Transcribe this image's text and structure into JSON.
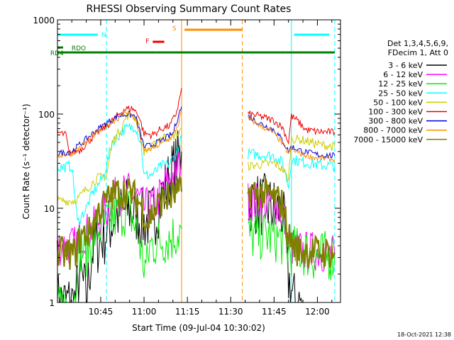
{
  "chart_data": {
    "type": "line",
    "title": "RHESSI Observing Summary Count Rates",
    "xlabel": "Start Time (09-Jul-04 10:30:02)",
    "ylabel": "Count Rate (s⁻¹ detector⁻¹)",
    "y_scale": "log",
    "ylim": [
      1,
      1000
    ],
    "xlim": [
      "10:30:02",
      "12:08"
    ],
    "x_ticks": [
      "10:45",
      "11:00",
      "11:15",
      "11:30",
      "11:45",
      "12:00"
    ],
    "y_ticks": [
      "1",
      "10",
      "100",
      "1000"
    ],
    "grid": false,
    "legend_position": "right",
    "legend_header": [
      "Det 1,3,4,5,6,9,",
      "FDecim 1, Att 0"
    ],
    "timestamp": "18-Oct-2021 12:38",
    "colors": {
      "black": "#000000",
      "magenta": "#ff00ff",
      "green": "#00ee00",
      "cyan": "#00ffff",
      "yellow": "#cccc00",
      "red": "#ee0000",
      "blue": "#0000dd",
      "orange": "#ff8c00",
      "olive": "#808000",
      "darkgreen": "#008000",
      "lightcyan": "#33ffff"
    },
    "flag_bars": [
      {
        "label": "N",
        "color": "#00ffff",
        "segments": [
          [
            "10:30",
            "10:44"
          ],
          [
            "11:52",
            "12:06"
          ]
        ]
      },
      {
        "label": "S",
        "color": "#ff8c00",
        "segments": [
          [
            "11:14",
            "11:34"
          ]
        ]
      },
      {
        "label": "F",
        "color": "#ee0000",
        "segments": [
          [
            "11:03",
            "11:07"
          ]
        ]
      },
      {
        "label": "RDO",
        "color": "#008000",
        "segments": [
          [
            "10:30",
            "10:32"
          ]
        ]
      },
      {
        "label": "RD4",
        "color": "#008000",
        "segments": [
          [
            "10:30",
            "11:04"
          ],
          [
            "11:04",
            "11:34"
          ],
          [
            "11:34",
            "11:49"
          ],
          [
            "11:49",
            "12:06"
          ]
        ]
      }
    ],
    "vertical_lines": [
      {
        "time": "10:47",
        "color": "#00ffff",
        "style": "dashed"
      },
      {
        "time": "11:13",
        "color": "#ff8c00",
        "style": "solid"
      },
      {
        "time": "11:34",
        "color": "#ff8c00",
        "style": "dashed"
      },
      {
        "time": "11:51",
        "color": "#00ffff",
        "style": "solid"
      },
      {
        "time": "12:06",
        "color": "#00ffff",
        "style": "dashed"
      }
    ],
    "series": [
      {
        "name": "3 - 6 keV",
        "color": "#000000",
        "segments": [
          [
            [
              "10:30",
              1.0
            ],
            [
              "10:36",
              1.0
            ],
            [
              "10:38",
              2.0
            ],
            [
              "10:40",
              1.1
            ],
            [
              "10:42",
              3.5
            ],
            [
              "10:46",
              5.0
            ],
            [
              "10:50",
              8.0
            ],
            [
              "10:54",
              10.0
            ],
            [
              "10:57",
              9.0
            ],
            [
              "11:00",
              7.0
            ],
            [
              "11:04",
              9.0
            ],
            [
              "11:07",
              15.0
            ],
            [
              "11:10",
              25.0
            ],
            [
              "11:12",
              33.0
            ],
            [
              "11:13",
              40.0
            ]
          ],
          [
            [
              "11:36",
              12.0
            ],
            [
              "11:40",
              11.0
            ],
            [
              "11:45",
              10.0
            ],
            [
              "11:48",
              9.0
            ],
            [
              "11:50",
              1.8
            ],
            [
              "11:52",
              1.0
            ],
            [
              "11:55",
              1.0
            ]
          ]
        ]
      },
      {
        "name": "6 - 12 keV",
        "color": "#ff00ff",
        "segments": [
          [
            [
              "10:30",
              4.0
            ],
            [
              "10:36",
              4.0
            ],
            [
              "10:38",
              5.0
            ],
            [
              "10:42",
              6.0
            ],
            [
              "10:46",
              9.0
            ],
            [
              "10:50",
              13.0
            ],
            [
              "10:54",
              15.0
            ],
            [
              "10:57",
              14.0
            ],
            [
              "11:00",
              10.0
            ],
            [
              "11:04",
              11.0
            ],
            [
              "11:07",
              17.0
            ],
            [
              "11:10",
              22.0
            ],
            [
              "11:12",
              28.0
            ],
            [
              "11:13",
              32.0
            ]
          ],
          [
            [
              "11:36",
              12.0
            ],
            [
              "11:40",
              11.5
            ],
            [
              "11:45",
              11.0
            ],
            [
              "11:48",
              9.0
            ],
            [
              "11:50",
              4.0
            ],
            [
              "11:55",
              3.5
            ],
            [
              "12:00",
              3.5
            ],
            [
              "12:06",
              3.2
            ]
          ]
        ]
      },
      {
        "name": "12 - 25 keV",
        "color": "#00ee00",
        "segments": [
          [
            [
              "10:30",
              1.0
            ],
            [
              "10:36",
              1.0
            ],
            [
              "10:37",
              4.0
            ],
            [
              "10:40",
              3.5
            ],
            [
              "10:43",
              5.5
            ],
            [
              "10:47",
              7.0
            ],
            [
              "10:52",
              9.0
            ],
            [
              "10:55",
              9.5
            ],
            [
              "10:58",
              5.0
            ],
            [
              "11:00",
              2.5
            ],
            [
              "11:01",
              2.4
            ],
            [
              "11:02",
              4.0
            ],
            [
              "11:06",
              4.5
            ],
            [
              "11:10",
              5.0
            ],
            [
              "11:13",
              6.0
            ]
          ],
          [
            [
              "11:36",
              5.0
            ],
            [
              "11:40",
              5.2
            ],
            [
              "11:45",
              5.0
            ],
            [
              "11:48",
              4.5
            ],
            [
              "11:50",
              3.5
            ],
            [
              "11:55",
              3.5
            ],
            [
              "12:00",
              3.0
            ],
            [
              "12:06",
              3.2
            ]
          ]
        ]
      },
      {
        "name": "25 - 50 keV",
        "color": "#00ffff",
        "segments": [
          [
            [
              "10:30",
              27.0
            ],
            [
              "10:35",
              28.0
            ],
            [
              "10:37",
              7.0
            ],
            [
              "10:40",
              10.0
            ],
            [
              "10:42",
              14.0
            ],
            [
              "10:46",
              22.0
            ],
            [
              "10:49",
              50.0
            ],
            [
              "10:53",
              68.0
            ],
            [
              "10:57",
              75.0
            ],
            [
              "10:59",
              48.0
            ],
            [
              "11:00",
              22.0
            ],
            [
              "11:03",
              23.0
            ],
            [
              "11:06",
              28.0
            ],
            [
              "11:09",
              30.0
            ],
            [
              "11:11",
              38.0
            ],
            [
              "11:13",
              55.0
            ]
          ],
          [
            [
              "11:36",
              38.0
            ],
            [
              "11:40",
              37.0
            ],
            [
              "11:45",
              36.0
            ],
            [
              "11:48",
              30.0
            ],
            [
              "11:50",
              17.0
            ],
            [
              "11:51",
              33.0
            ],
            [
              "11:55",
              31.0
            ],
            [
              "12:00",
              29.0
            ],
            [
              "12:06",
              28.0
            ]
          ]
        ]
      },
      {
        "name": "50 - 100 keV",
        "color": "#cccc00",
        "segments": [
          [
            [
              "10:30",
              12.0
            ],
            [
              "10:36",
              12.0
            ],
            [
              "10:38",
              13.5
            ],
            [
              "10:40",
              16.0
            ],
            [
              "10:44",
              21.0
            ],
            [
              "10:47",
              22.0
            ],
            [
              "10:49",
              50.0
            ],
            [
              "10:52",
              70.0
            ],
            [
              "10:54",
              95.0
            ],
            [
              "10:56",
              100.0
            ],
            [
              "10:58",
              80.0
            ],
            [
              "11:00",
              40.0
            ],
            [
              "11:03",
              45.0
            ],
            [
              "11:06",
              57.0
            ],
            [
              "11:10",
              58.0
            ],
            [
              "11:12",
              62.0
            ],
            [
              "11:13",
              70.0
            ]
          ],
          [
            [
              "11:36",
              28.0
            ],
            [
              "11:40",
              29.0
            ],
            [
              "11:45",
              30.0
            ],
            [
              "11:48",
              26.0
            ],
            [
              "11:50",
              20.0
            ],
            [
              "11:51",
              55.0
            ],
            [
              "11:55",
              53.0
            ],
            [
              "12:00",
              48.0
            ],
            [
              "12:06",
              45.0
            ]
          ]
        ]
      },
      {
        "name": "100 - 300 keV",
        "color": "#ee0000",
        "segments": [
          [
            [
              "10:30",
              64.0
            ],
            [
              "10:33",
              60.0
            ],
            [
              "10:34",
              38.0
            ],
            [
              "10:38",
              42.0
            ],
            [
              "10:43",
              60.0
            ],
            [
              "10:47",
              75.0
            ],
            [
              "10:50",
              90.0
            ],
            [
              "10:53",
              112.0
            ],
            [
              "10:56",
              115.0
            ],
            [
              "10:58",
              100.0
            ],
            [
              "11:00",
              62.0
            ],
            [
              "11:03",
              60.0
            ],
            [
              "11:06",
              70.0
            ],
            [
              "11:09",
              75.0
            ],
            [
              "11:11",
              100.0
            ],
            [
              "11:12",
              130.0
            ],
            [
              "11:13",
              190.0
            ]
          ],
          [
            [
              "11:36",
              100.0
            ],
            [
              "11:40",
              95.0
            ],
            [
              "11:45",
              85.0
            ],
            [
              "11:48",
              72.0
            ],
            [
              "11:50",
              50.0
            ],
            [
              "11:51",
              95.0
            ],
            [
              "11:53",
              85.0
            ],
            [
              "11:56",
              68.0
            ],
            [
              "12:00",
              65.0
            ],
            [
              "12:06",
              64.0
            ]
          ]
        ]
      },
      {
        "name": "300 - 800 keV",
        "color": "#0000dd",
        "segments": [
          [
            [
              "10:30",
              38.0
            ],
            [
              "10:35",
              40.0
            ],
            [
              "10:38",
              48.0
            ],
            [
              "10:43",
              65.0
            ],
            [
              "10:47",
              80.0
            ],
            [
              "10:51",
              95.0
            ],
            [
              "10:54",
              100.0
            ],
            [
              "10:57",
              95.0
            ],
            [
              "11:00",
              45.0
            ],
            [
              "11:02",
              46.0
            ],
            [
              "11:06",
              52.0
            ],
            [
              "11:10",
              62.0
            ],
            [
              "11:12",
              100.0
            ],
            [
              "11:13",
              120.0
            ]
          ],
          [
            [
              "11:36",
              95.0
            ],
            [
              "11:40",
              80.0
            ],
            [
              "11:45",
              68.0
            ],
            [
              "11:48",
              52.0
            ],
            [
              "11:50",
              40.0
            ],
            [
              "11:51",
              45.0
            ],
            [
              "11:55",
              40.0
            ],
            [
              "12:00",
              37.0
            ],
            [
              "12:06",
              36.0
            ]
          ]
        ]
      },
      {
        "name": "800 - 7000 keV",
        "color": "#ff8c00",
        "segments": [
          [
            [
              "10:30",
              36.0
            ],
            [
              "10:35",
              38.0
            ],
            [
              "10:38",
              45.0
            ],
            [
              "10:43",
              60.0
            ],
            [
              "10:47",
              75.0
            ],
            [
              "10:51",
              90.0
            ],
            [
              "10:54",
              108.0
            ],
            [
              "10:57",
              88.0
            ],
            [
              "11:00",
              40.0
            ],
            [
              "11:02",
              42.0
            ],
            [
              "11:06",
              48.0
            ],
            [
              "11:10",
              58.0
            ],
            [
              "11:12",
              80.0
            ],
            [
              "11:13",
              110.0
            ]
          ],
          [
            [
              "11:36",
              90.0
            ],
            [
              "11:40",
              76.0
            ],
            [
              "11:45",
              63.0
            ],
            [
              "11:48",
              48.0
            ],
            [
              "11:50",
              38.0
            ],
            [
              "11:51",
              42.0
            ],
            [
              "11:55",
              37.0
            ],
            [
              "12:00",
              34.0
            ],
            [
              "12:06",
              33.0
            ]
          ]
        ]
      },
      {
        "name": "7000 - 15000 keV",
        "color": "#808000",
        "segments": [
          [
            [
              "10:30",
              3.3
            ],
            [
              "10:36",
              3.3
            ],
            [
              "10:38",
              5.0
            ],
            [
              "10:41",
              5.5
            ],
            [
              "10:44",
              9.0
            ],
            [
              "10:47",
              12.0
            ],
            [
              "10:50",
              14.5
            ],
            [
              "10:53",
              15.0
            ],
            [
              "10:56",
              14.0
            ],
            [
              "10:59",
              11.0
            ],
            [
              "11:01",
              7.0
            ],
            [
              "11:03",
              9.0
            ],
            [
              "11:06",
              12.0
            ],
            [
              "11:09",
              13.0
            ],
            [
              "11:11",
              14.0
            ],
            [
              "11:13",
              15.0
            ]
          ],
          [
            [
              "11:36",
              15.0
            ],
            [
              "11:40",
              14.5
            ],
            [
              "11:45",
              13.0
            ],
            [
              "11:48",
              11.0
            ],
            [
              "11:50",
              5.0
            ],
            [
              "11:53",
              3.6
            ],
            [
              "11:58",
              3.5
            ],
            [
              "12:02",
              3.4
            ],
            [
              "12:06",
              3.4
            ]
          ]
        ]
      }
    ]
  }
}
